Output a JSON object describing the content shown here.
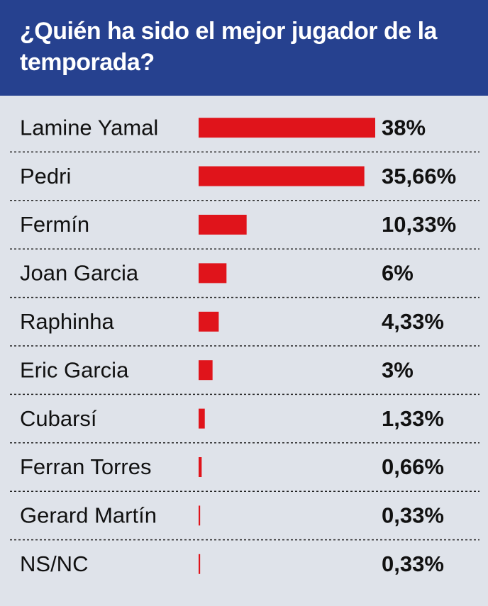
{
  "chart_data": {
    "type": "bar",
    "orientation": "horizontal",
    "title": "¿Quién ha sido el mejor jugador de la temporada?",
    "categories": [
      "Lamine Yamal",
      "Pedri",
      "Fermín",
      "Joan Garcia",
      "Raphinha",
      "Eric Garcia",
      "Cubarsí",
      "Ferran Torres",
      "Gerard Martín",
      "NS/NC"
    ],
    "values": [
      38,
      35.66,
      10.33,
      6,
      4.33,
      3,
      1.33,
      0.66,
      0.33,
      0.33
    ],
    "value_labels": [
      "38%",
      "35,66%",
      "10,33%",
      "6%",
      "4,33%",
      "3%",
      "1,33%",
      "0,66%",
      "0,33%",
      "0,33%"
    ],
    "color": "#e0141b"
  }
}
